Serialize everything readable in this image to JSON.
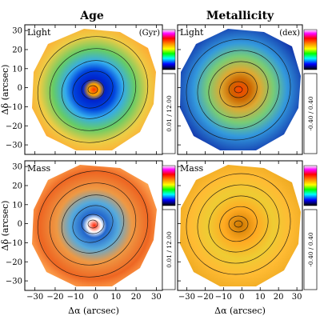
{
  "column_titles": [
    "Age",
    "Metallicity"
  ],
  "panels": [
    {
      "row_label": "Light",
      "unit": "(Gyr)",
      "quantity": "age",
      "weighting": "light"
    },
    {
      "row_label": "Light",
      "unit": "(dex)",
      "quantity": "metallicity",
      "weighting": "light"
    },
    {
      "row_label": "Mass",
      "unit": "",
      "quantity": "age",
      "weighting": "mass"
    },
    {
      "row_label": "Mass",
      "unit": "",
      "quantity": "metallicity",
      "weighting": "mass"
    }
  ],
  "colorbars": [
    {
      "label": "0.01 / 12.00",
      "min": 0.01,
      "max": 12.0
    },
    {
      "label": "-0.40 / 0.40",
      "min": -0.4,
      "max": 0.4
    },
    {
      "label": "0.01 / 12.00",
      "min": 0.01,
      "max": 12.0
    },
    {
      "label": "-0.40 / 0.40",
      "min": -0.4,
      "max": 0.4
    }
  ],
  "colorbar_colors": [
    "#ffffff",
    "#ff00ff",
    "#ff0000",
    "#ff8800",
    "#ffff00",
    "#00ff00",
    "#00ffff",
    "#0000ff",
    "#000000"
  ],
  "axes": {
    "xlabel": "Δα (arcsec)",
    "ylabel": "Δδ (arcsec)",
    "xlim": [
      -35,
      33
    ],
    "ylim": [
      -35,
      33
    ],
    "xticks": [
      -30,
      -20,
      -10,
      0,
      10,
      20,
      30
    ],
    "yticks": [
      -30,
      -20,
      -10,
      0,
      10,
      20,
      30
    ],
    "xtick_labels": [
      "−30",
      "−20",
      "−10",
      "0",
      "10",
      "20",
      "30"
    ],
    "ytick_labels": [
      "−30",
      "−20",
      "−10",
      "0",
      "10",
      "20",
      "30"
    ]
  }
}
